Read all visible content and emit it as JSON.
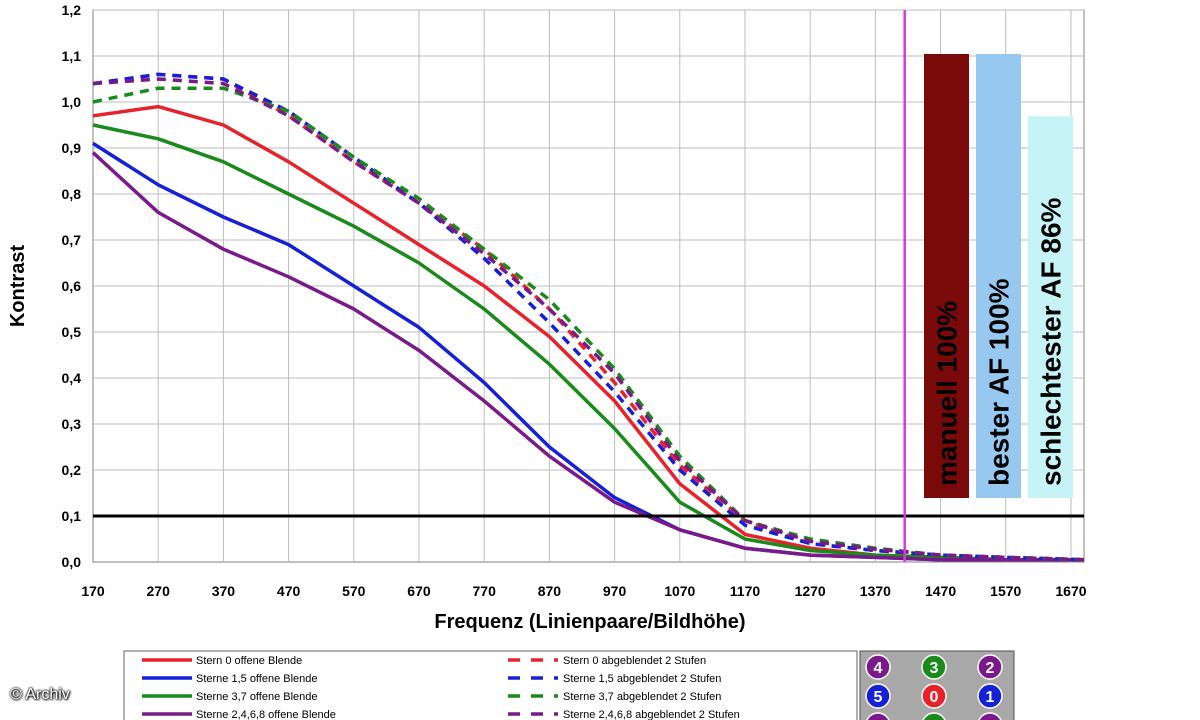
{
  "credit": "© Archiv",
  "colors": {
    "red": "#e8212b",
    "blue": "#1520d8",
    "green": "#1a8a1a",
    "purple": "#7a1a8a",
    "magenta_line": "#d63ae0",
    "bar_manuell": "#7a0a0a",
    "bar_bester": "#96c8f0",
    "bar_schlechtester": "#c6f4f6",
    "key_bg": "#a8a8a8"
  },
  "chart_data": {
    "type": "line",
    "title": "",
    "xlabel": "Frequenz (Linienpaare/Bildhöhe)",
    "ylabel": "Kontrast",
    "xlim": [
      170,
      1690
    ],
    "ylim": [
      0,
      1.2
    ],
    "x_ticks": [
      170,
      270,
      370,
      470,
      570,
      670,
      770,
      870,
      970,
      1070,
      1170,
      1270,
      1370,
      1470,
      1570,
      1670
    ],
    "y_ticks": [
      "0,0",
      "0,1",
      "0,2",
      "0,3",
      "0,4",
      "0,5",
      "0,6",
      "0,7",
      "0,8",
      "0,9",
      "1,0",
      "1,1",
      "1,2"
    ],
    "grid": true,
    "reference_line_y": 0.1,
    "marker_line_x": 1415,
    "x": [
      170,
      270,
      370,
      470,
      570,
      670,
      770,
      870,
      970,
      1070,
      1170,
      1270,
      1370,
      1470,
      1570,
      1690
    ],
    "series": [
      {
        "name": "Stern 0 offene Blende",
        "color": "red",
        "dash": false,
        "values": [
          0.97,
          0.99,
          0.95,
          0.87,
          0.78,
          0.69,
          0.6,
          0.49,
          0.35,
          0.17,
          0.06,
          0.03,
          0.015,
          0.01,
          0.005,
          0.005
        ]
      },
      {
        "name": "Sterne 1,5 offene Blende",
        "color": "blue",
        "dash": false,
        "values": [
          0.91,
          0.82,
          0.75,
          0.69,
          0.6,
          0.51,
          0.39,
          0.25,
          0.14,
          0.07,
          0.03,
          0.015,
          0.01,
          0.005,
          0.005,
          0.005
        ]
      },
      {
        "name": "Sterne 3,7 offene Blende",
        "color": "green",
        "dash": false,
        "values": [
          0.95,
          0.92,
          0.87,
          0.8,
          0.73,
          0.65,
          0.55,
          0.43,
          0.29,
          0.13,
          0.05,
          0.025,
          0.015,
          0.01,
          0.005,
          0.005
        ]
      },
      {
        "name": "Sterne 2,4,6,8 offene Blende",
        "color": "purple",
        "dash": false,
        "values": [
          0.89,
          0.76,
          0.68,
          0.62,
          0.55,
          0.46,
          0.35,
          0.23,
          0.13,
          0.07,
          0.03,
          0.015,
          0.01,
          0.005,
          0.005,
          0.005
        ]
      },
      {
        "name": "Stern 0 abgeblendet 2 Stufen",
        "color": "red",
        "dash": true,
        "values": [
          1.04,
          1.06,
          1.05,
          0.97,
          0.87,
          0.78,
          0.68,
          0.55,
          0.39,
          0.21,
          0.09,
          0.04,
          0.025,
          0.015,
          0.01,
          0.005
        ]
      },
      {
        "name": "Sterne 1,5 abgeblendet 2 Stufen",
        "color": "blue",
        "dash": true,
        "values": [
          1.04,
          1.06,
          1.05,
          0.98,
          0.88,
          0.78,
          0.66,
          0.52,
          0.37,
          0.2,
          0.08,
          0.04,
          0.025,
          0.015,
          0.01,
          0.005
        ]
      },
      {
        "name": "Sterne 3,7 abgeblendet 2 Stufen",
        "color": "green",
        "dash": true,
        "values": [
          1.0,
          1.03,
          1.03,
          0.98,
          0.88,
          0.79,
          0.68,
          0.57,
          0.42,
          0.23,
          0.09,
          0.05,
          0.03,
          0.015,
          0.01,
          0.005
        ]
      },
      {
        "name": "Sterne 2,4,6,8 abgeblendet 2 Stufen",
        "color": "purple",
        "dash": true,
        "values": [
          1.04,
          1.05,
          1.04,
          0.97,
          0.87,
          0.78,
          0.67,
          0.55,
          0.41,
          0.22,
          0.09,
          0.045,
          0.028,
          0.015,
          0.01,
          0.005
        ]
      }
    ],
    "bars": [
      {
        "label": "manuell 100%",
        "value_percent": 100,
        "color": "bar_manuell"
      },
      {
        "label": "bester AF 100%",
        "value_percent": 100,
        "color": "bar_bester"
      },
      {
        "label": "schlechtester AF 86%",
        "value_percent": 86,
        "color": "bar_schlechtester"
      }
    ],
    "legend": {
      "left": [
        {
          "label": "Stern 0 offene Blende",
          "color": "red",
          "dash": false
        },
        {
          "label": "Sterne 1,5 offene Blende",
          "color": "blue",
          "dash": false
        },
        {
          "label": "Sterne 3,7 offene Blende",
          "color": "green",
          "dash": false
        },
        {
          "label": "Sterne 2,4,6,8 offene Blende",
          "color": "purple",
          "dash": false
        }
      ],
      "right": [
        {
          "label": "Stern 0 abgeblendet 2 Stufen",
          "color": "red",
          "dash": true
        },
        {
          "label": "Sterne 1,5 abgeblendet 2 Stufen",
          "color": "blue",
          "dash": true
        },
        {
          "label": "Sterne 3,7 abgeblendet 2 Stufen",
          "color": "green",
          "dash": true
        },
        {
          "label": "Sterne 2,4,6,8 abgeblendet 2 Stufen",
          "color": "purple",
          "dash": true
        }
      ]
    },
    "star_key": [
      {
        "label": "4",
        "color": "purple"
      },
      {
        "label": "3",
        "color": "green"
      },
      {
        "label": "2",
        "color": "purple"
      },
      {
        "label": "5",
        "color": "blue"
      },
      {
        "label": "0",
        "color": "red"
      },
      {
        "label": "1",
        "color": "blue"
      },
      {
        "label": "",
        "color": "purple"
      },
      {
        "label": "",
        "color": "green"
      },
      {
        "label": "",
        "color": "purple"
      }
    ]
  }
}
